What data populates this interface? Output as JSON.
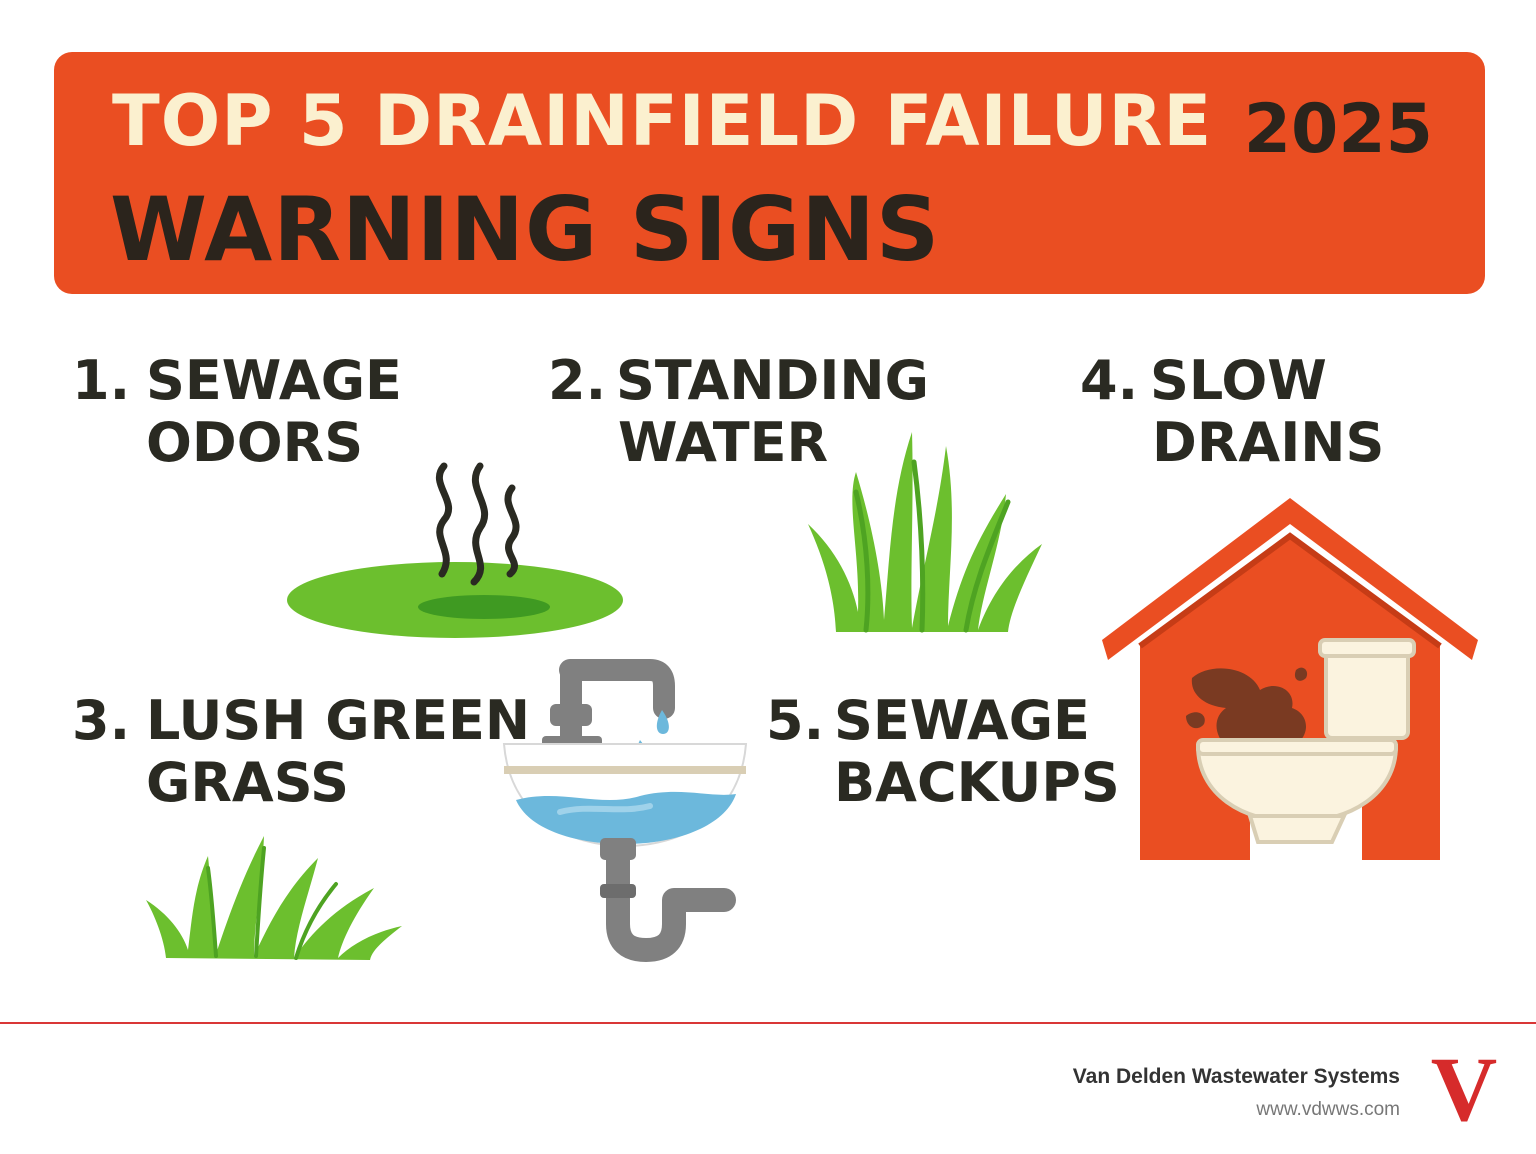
{
  "header": {
    "title_line1": "TOP 5 DRAINFIELD FAILURE",
    "title_line2": "WARNING SIGNS",
    "year": "2025"
  },
  "signs": [
    {
      "number": "1.",
      "line1": "SEWAGE",
      "line2": "ODORS",
      "icon": "odor-puddle-icon"
    },
    {
      "number": "2.",
      "line1": "STANDING",
      "line2": "WATER",
      "icon": "grass-tuft-icon"
    },
    {
      "number": "3.",
      "line1": "LUSH GREEN",
      "line2": "GRASS",
      "icon": "grass-tuft-icon"
    },
    {
      "number": "4.",
      "line1": "SLOW",
      "line2": "DRAINS",
      "icon": "house-toilet-icon"
    },
    {
      "number": "5.",
      "line1": "SEWAGE",
      "line2": "BACKUPS",
      "icon": "sink-faucet-icon"
    }
  ],
  "footer": {
    "company": "Van Delden Wastewater Systems",
    "url": "www.vdwws.com",
    "logo_letter": "V"
  },
  "colors": {
    "banner": "#ea4e22",
    "title_light": "#fbf0cf",
    "text_dark": "#2b241c",
    "grass": "#6cbf2e",
    "water": "#6cb8dc",
    "pipe": "#7f7f7f",
    "logo": "#d62b2b"
  }
}
